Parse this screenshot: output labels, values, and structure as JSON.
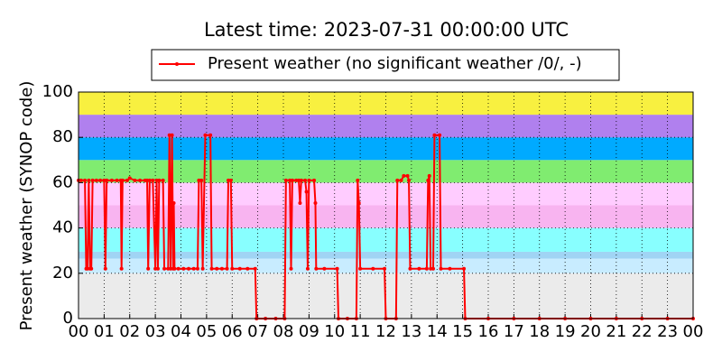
{
  "chart_data": {
    "type": "line",
    "title": "Latest time: 2023-07-31 00:00:00 UTC",
    "y_label": "Present weather (SYNOP code)",
    "xlim": [
      0,
      24
    ],
    "ylim": [
      0,
      100
    ],
    "xticks": [
      {
        "value": 0,
        "label": "00"
      },
      {
        "value": 1,
        "label": "01"
      },
      {
        "value": 2,
        "label": "02"
      },
      {
        "value": 3,
        "label": "03"
      },
      {
        "value": 4,
        "label": "04"
      },
      {
        "value": 5,
        "label": "05"
      },
      {
        "value": 6,
        "label": "06"
      },
      {
        "value": 7,
        "label": "07"
      },
      {
        "value": 8,
        "label": "08"
      },
      {
        "value": 9,
        "label": "09"
      },
      {
        "value": 10,
        "label": "10"
      },
      {
        "value": 11,
        "label": "11"
      },
      {
        "value": 12,
        "label": "12"
      },
      {
        "value": 13,
        "label": "13"
      },
      {
        "value": 14,
        "label": "14"
      },
      {
        "value": 15,
        "label": "15"
      },
      {
        "value": 16,
        "label": "16"
      },
      {
        "value": 17,
        "label": "17"
      },
      {
        "value": 18,
        "label": "18"
      },
      {
        "value": 19,
        "label": "19"
      },
      {
        "value": 20,
        "label": "20"
      },
      {
        "value": 21,
        "label": "21"
      },
      {
        "value": 22,
        "label": "22"
      },
      {
        "value": 23,
        "label": "23"
      },
      {
        "value": 24,
        "label": "00"
      }
    ],
    "yticks": [
      0,
      20,
      40,
      60,
      80,
      100
    ],
    "grid": true,
    "bands": [
      {
        "from": 0,
        "to": 20,
        "color": "#ebebeb"
      },
      {
        "from": 20,
        "to": 26.5,
        "color": "#c8ecff"
      },
      {
        "from": 26.5,
        "to": 29.5,
        "color": "#a0d4f4"
      },
      {
        "from": 29.5,
        "to": 40,
        "color": "#88ffff"
      },
      {
        "from": 40,
        "to": 50,
        "color": "#f8b4f0"
      },
      {
        "from": 50,
        "to": 60,
        "color": "#ffccff"
      },
      {
        "from": 60,
        "to": 70,
        "color": "#80ec70"
      },
      {
        "from": 70,
        "to": 80,
        "color": "#00aaff"
      },
      {
        "from": 80,
        "to": 90,
        "color": "#b080ee"
      },
      {
        "from": 90,
        "to": 100,
        "color": "#f8f040"
      }
    ],
    "series": [
      {
        "name": "Present weather (no significant weather /0/, -)",
        "color": "#ff0000",
        "x": [
          0,
          0.1,
          0.25,
          0.3,
          0.35,
          0.4,
          0.45,
          0.5,
          0.55,
          0.7,
          0.85,
          1.0,
          1.05,
          1.1,
          1.3,
          1.5,
          1.65,
          1.68,
          1.72,
          1.9,
          2.0,
          2.2,
          2.4,
          2.6,
          2.68,
          2.72,
          2.78,
          2.9,
          3.0,
          3.05,
          3.1,
          3.15,
          3.3,
          3.35,
          3.5,
          3.55,
          3.6,
          3.65,
          3.7,
          3.72,
          3.75,
          3.9,
          4.1,
          4.3,
          4.5,
          4.65,
          4.7,
          4.8,
          4.85,
          4.95,
          5.15,
          5.2,
          5.4,
          5.6,
          5.8,
          5.85,
          5.95,
          6.0,
          6.3,
          6.6,
          6.9,
          6.95,
          7.3,
          7.7,
          8.05,
          8.1,
          8.25,
          8.3,
          8.35,
          8.5,
          8.6,
          8.65,
          8.7,
          8.85,
          8.9,
          8.95,
          9.0,
          9.2,
          9.25,
          9.28,
          9.6,
          10.1,
          10.15,
          10.5,
          10.85,
          10.9,
          10.95,
          11.0,
          11.5,
          11.95,
          12.0,
          12.4,
          12.45,
          12.6,
          12.7,
          12.85,
          12.9,
          12.95,
          13.3,
          13.6,
          13.65,
          13.7,
          13.75,
          13.85,
          13.9,
          14.1,
          14.15,
          14.5,
          15.05,
          15.1,
          16,
          17,
          18,
          19,
          20,
          21,
          22,
          23,
          24
        ],
        "values": [
          61,
          61,
          61,
          22,
          22,
          61,
          22,
          22,
          61,
          61,
          61,
          61,
          22,
          61,
          61,
          61,
          61,
          22,
          61,
          61,
          62,
          61,
          61,
          61,
          61,
          22,
          61,
          61,
          22,
          61,
          22,
          61,
          61,
          22,
          22,
          81,
          22,
          81,
          22,
          51,
          22,
          22,
          22,
          22,
          22,
          22,
          61,
          61,
          22,
          81,
          81,
          22,
          22,
          22,
          22,
          61,
          61,
          22,
          22,
          22,
          22,
          0,
          0,
          0,
          0,
          61,
          61,
          22,
          61,
          61,
          61,
          51,
          61,
          61,
          56,
          22,
          61,
          61,
          51,
          22,
          22,
          22,
          0,
          0,
          0,
          61,
          51,
          22,
          22,
          22,
          0,
          0,
          61,
          61,
          63,
          63,
          61,
          22,
          22,
          22,
          61,
          63,
          22,
          22,
          81,
          81,
          22,
          22,
          22,
          0,
          0,
          0,
          0,
          0,
          0,
          0,
          0,
          0,
          0
        ]
      }
    ]
  }
}
